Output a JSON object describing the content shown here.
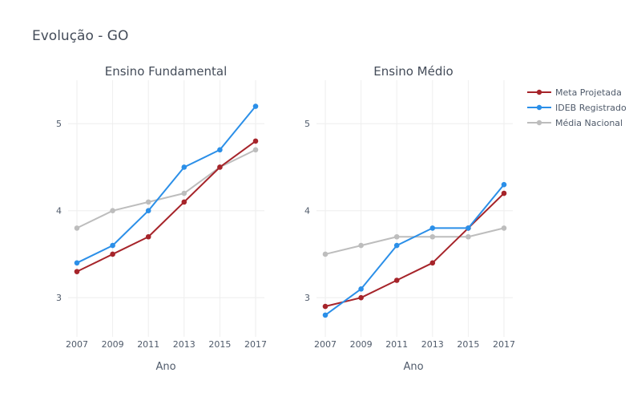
{
  "title": "Evolução - GO",
  "colors": {
    "meta": "#a6242a",
    "ideb": "#2b8fe8",
    "media": "#bdbdbd"
  },
  "chart_data": [
    {
      "type": "line",
      "title": "Ensino Fundamental",
      "xlabel": "Ano",
      "ylabel": "",
      "x": [
        "2007",
        "2009",
        "2011",
        "2013",
        "2015",
        "2017"
      ],
      "ylim": [
        2.55,
        5.5
      ],
      "yticks": [
        "3",
        "4",
        "5"
      ],
      "grid": true,
      "series": [
        {
          "name": "Meta Projetada",
          "values": [
            3.3,
            3.5,
            3.7,
            4.1,
            4.5,
            4.8
          ]
        },
        {
          "name": "IDEB Registrado",
          "values": [
            3.4,
            3.6,
            4.0,
            4.5,
            4.7,
            5.2
          ]
        },
        {
          "name": "Média Nacional",
          "values": [
            3.8,
            4.0,
            4.1,
            4.2,
            4.5,
            4.7
          ]
        }
      ]
    },
    {
      "type": "line",
      "title": "Ensino Médio",
      "xlabel": "Ano",
      "ylabel": "",
      "x": [
        "2007",
        "2009",
        "2011",
        "2013",
        "2015",
        "2017"
      ],
      "ylim": [
        2.55,
        5.5
      ],
      "yticks": [
        "3",
        "4",
        "5"
      ],
      "grid": true,
      "legend": "top-right",
      "series": [
        {
          "name": "Meta Projetada",
          "values": [
            2.9,
            3.0,
            3.2,
            3.4,
            3.8,
            4.2
          ]
        },
        {
          "name": "IDEB Registrado",
          "values": [
            2.8,
            3.1,
            3.6,
            3.8,
            3.8,
            4.3
          ]
        },
        {
          "name": "Média Nacional",
          "values": [
            3.5,
            3.6,
            3.7,
            3.7,
            3.7,
            3.8
          ]
        }
      ]
    }
  ],
  "legend": [
    {
      "label": "Meta Projetada",
      "color_key": "meta"
    },
    {
      "label": "IDEB Registrado",
      "color_key": "ideb"
    },
    {
      "label": "Média Nacional",
      "color_key": "media"
    }
  ]
}
